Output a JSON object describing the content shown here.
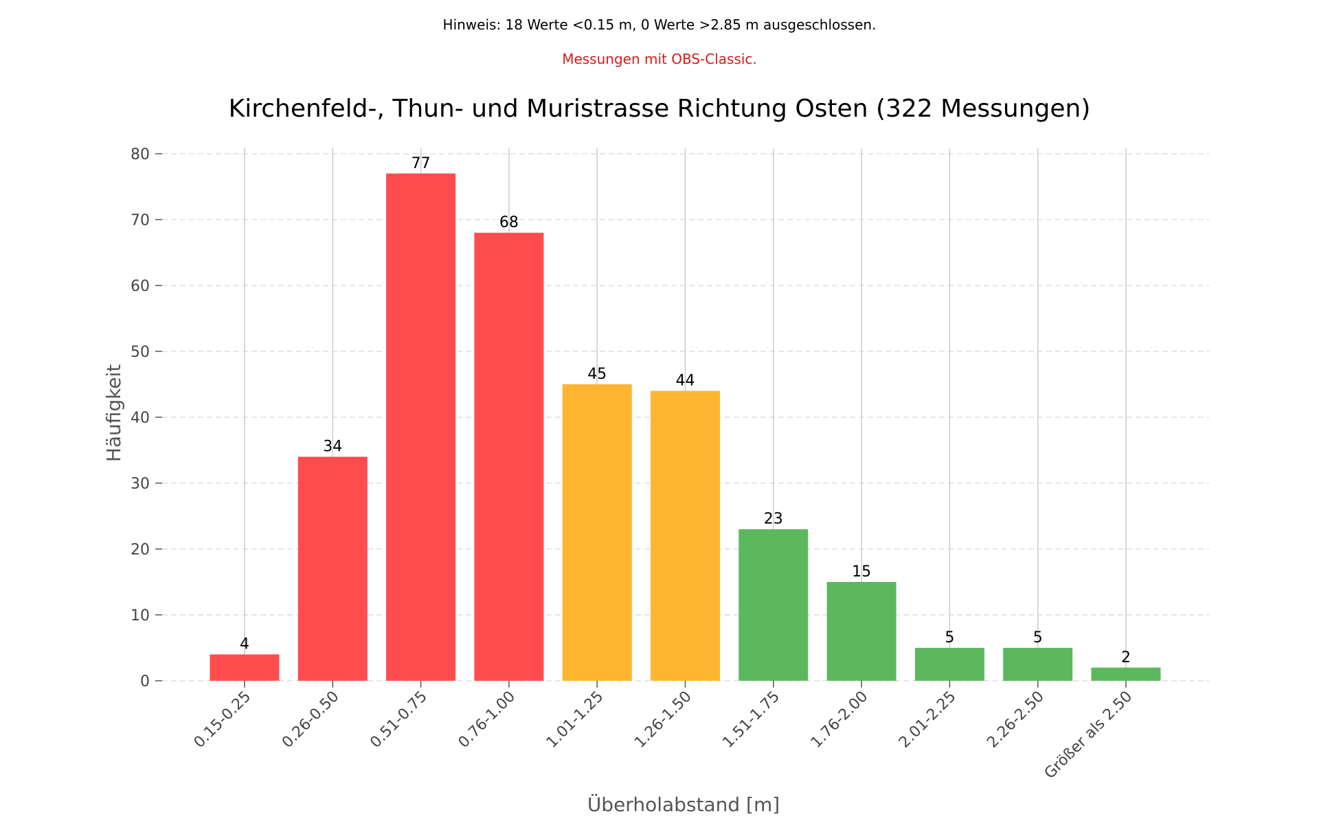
{
  "notes": {
    "main": "Hinweis: 18 Werte <0.15 m, 0 Werte >2.85 m ausgeschlossen.",
    "sub": "Messungen mit OBS-Classic."
  },
  "colors": {
    "red": "#ff4d4f",
    "orange": "#ffb531",
    "green": "#5cb85c",
    "grid": "#dddddd",
    "vgrid": "#cccccc",
    "note_sub": "#d71a1a"
  },
  "chart_data": {
    "type": "bar",
    "title": "Kirchenfeld-, Thun- und Muristrasse Richtung Osten (322 Messungen)",
    "xlabel": "Überholabstand [m]",
    "ylabel": "Häufigkeit",
    "ylim": [
      0,
      80
    ],
    "yticks": [
      0,
      10,
      20,
      30,
      40,
      50,
      60,
      70,
      80
    ],
    "grid": true,
    "categories": [
      "0.15-0.25",
      "0.26-0.50",
      "0.51-0.75",
      "0.76-1.00",
      "1.01-1.25",
      "1.26-1.50",
      "1.51-1.75",
      "1.76-2.00",
      "2.01-2.25",
      "2.26-2.50",
      "Größer als 2.50"
    ],
    "values": [
      4,
      34,
      77,
      68,
      45,
      44,
      23,
      15,
      5,
      5,
      2
    ],
    "bar_colors": [
      "red",
      "red",
      "red",
      "red",
      "orange",
      "orange",
      "green",
      "green",
      "green",
      "green",
      "green"
    ]
  }
}
